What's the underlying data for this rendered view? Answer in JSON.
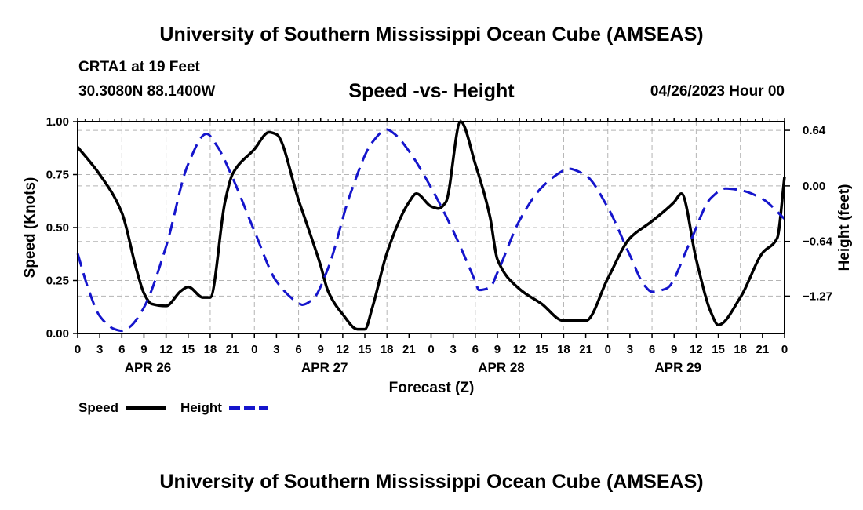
{
  "header": {
    "title": "University of Southern Mississippi Ocean Cube (AMSEAS)",
    "station": "CRTA1 at 19 Feet",
    "location": "30.3080N  88.1400W",
    "date_hour": "04/26/2023 Hour 00",
    "footer_title": "University of Southern Mississippi Ocean Cube (AMSEAS)"
  },
  "chart_data": {
    "type": "line",
    "title": "Speed -vs- Height",
    "xlabel": "Forecast (Z)",
    "ylabel": "Speed (Knots)",
    "y2label": "Height (feet)",
    "x_range_hours": [
      0,
      96
    ],
    "ylim": [
      0,
      1
    ],
    "y2lim": [
      -1.7,
      0.74
    ],
    "x_tick_step_hours": 3,
    "x_tick_labels": [
      "0",
      "3",
      "6",
      "9",
      "12",
      "15",
      "18",
      "21",
      "0",
      "3",
      "6",
      "9",
      "12",
      "15",
      "18",
      "21",
      "0",
      "3",
      "6",
      "9",
      "12",
      "15",
      "18",
      "21",
      "0",
      "3",
      "6",
      "9",
      "12",
      "15",
      "18",
      "21",
      "0"
    ],
    "date_labels": [
      {
        "label": "APR 26",
        "hour": 9
      },
      {
        "label": "APR 27",
        "hour": 33
      },
      {
        "label": "APR 28",
        "hour": 57
      },
      {
        "label": "APR 29",
        "hour": 81
      }
    ],
    "y_ticks": [
      {
        "value": 0.0,
        "label": "0.00"
      },
      {
        "value": 0.25,
        "label": "0.25"
      },
      {
        "value": 0.5,
        "label": "0.50"
      },
      {
        "value": 0.75,
        "label": "0.75"
      },
      {
        "value": 1.0,
        "label": "1.00"
      }
    ],
    "y2_ticks": [
      {
        "value": 0.64,
        "label": "0.64"
      },
      {
        "value": 0.0,
        "label": "0.00"
      },
      {
        "value": -0.64,
        "label": "−0.64"
      },
      {
        "value": -1.27,
        "label": "−1.27"
      }
    ],
    "grid": true,
    "legend": "bottom-left",
    "series": [
      {
        "name": "Speed",
        "axis": "left",
        "color": "#000000",
        "style": "solid",
        "x": [
          0,
          3,
          6,
          8,
          9,
          10,
          12,
          14,
          15,
          17,
          18,
          20,
          21,
          24,
          26,
          27,
          30,
          33,
          34,
          36,
          38,
          39,
          40,
          42,
          45,
          46,
          48,
          49,
          50,
          52,
          54,
          56,
          57,
          60,
          63,
          66,
          69,
          72,
          75,
          78,
          81,
          82,
          84,
          86,
          87,
          90,
          93,
          95,
          96
        ],
        "y": [
          0.88,
          0.75,
          0.57,
          0.3,
          0.19,
          0.14,
          0.13,
          0.2,
          0.22,
          0.17,
          0.17,
          0.62,
          0.75,
          0.87,
          0.95,
          0.94,
          0.63,
          0.32,
          0.2,
          0.09,
          0.02,
          0.02,
          0.12,
          0.38,
          0.62,
          0.66,
          0.6,
          0.59,
          0.62,
          1.0,
          0.8,
          0.55,
          0.35,
          0.21,
          0.14,
          0.06,
          0.06,
          0.26,
          0.45,
          0.53,
          0.62,
          0.66,
          0.35,
          0.1,
          0.04,
          0.17,
          0.38,
          0.45,
          0.74
        ]
      },
      {
        "name": "Height",
        "axis": "right",
        "color": "#1515cc",
        "style": "dashed",
        "x": [
          0,
          1.5,
          3,
          5,
          6,
          7,
          9,
          12,
          15,
          17.5,
          19,
          21,
          24,
          27,
          30,
          30.5,
          32,
          34,
          37,
          40,
          42,
          43,
          45,
          48,
          51,
          54,
          54.5,
          56,
          57,
          60,
          63,
          66,
          66.5,
          69,
          72,
          75,
          77,
          78,
          80,
          83,
          86,
          88,
          90,
          93,
          96
        ],
        "y": [
          -0.78,
          -1.2,
          -1.5,
          -1.65,
          -1.67,
          -1.63,
          -1.4,
          -0.7,
          0.25,
          0.6,
          0.45,
          0.1,
          -0.52,
          -1.1,
          -1.35,
          -1.37,
          -1.3,
          -0.95,
          -0.1,
          0.5,
          0.65,
          0.6,
          0.4,
          -0.02,
          -0.52,
          -1.1,
          -1.2,
          -1.17,
          -1.0,
          -0.4,
          -0.02,
          0.18,
          0.2,
          0.12,
          -0.25,
          -0.8,
          -1.15,
          -1.22,
          -1.18,
          -0.68,
          -0.14,
          -0.03,
          -0.05,
          -0.15,
          -0.38
        ]
      }
    ]
  },
  "legend": {
    "speed_label": "Speed",
    "height_label": "Height"
  }
}
